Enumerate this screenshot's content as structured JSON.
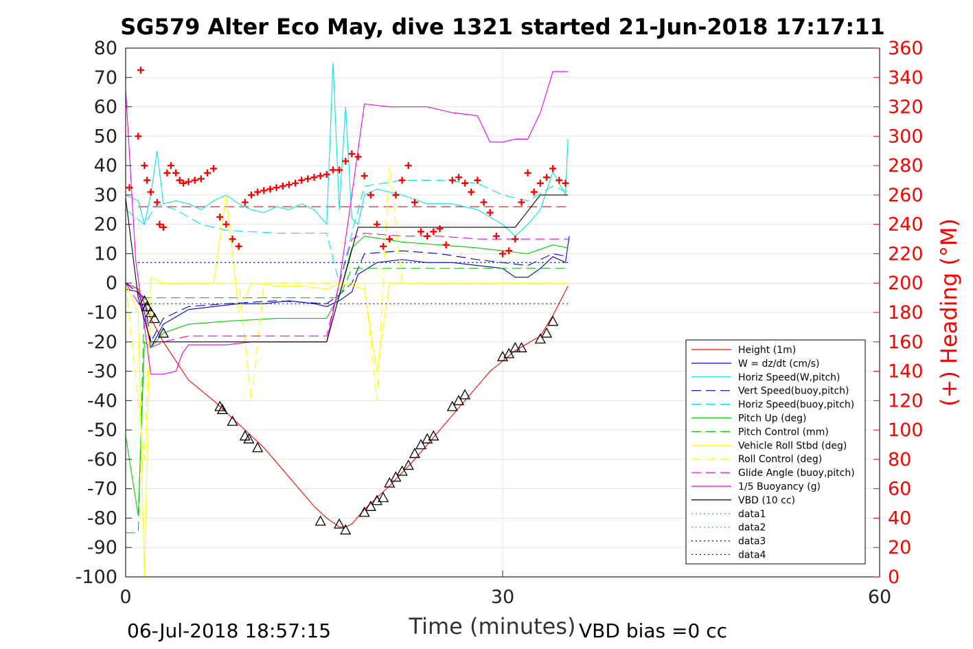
{
  "chart_data": {
    "type": "line",
    "title": "SG579 Alter Eco May, dive 1321 started 21-Jun-2018 17:17:11",
    "xlabel": "Time (minutes)",
    "ylabel_right": "(+) Heading (°M)",
    "xlim": [
      0,
      60
    ],
    "ylim_left": [
      -100,
      80
    ],
    "ylim_right": [
      0,
      360
    ],
    "x_ticks": [
      "0",
      "30",
      "60"
    ],
    "x_tick_values": [
      0,
      30,
      60
    ],
    "y_ticks_left": [
      "80",
      "70",
      "60",
      "50",
      "40",
      "30",
      "20",
      "10",
      "0",
      "-10",
      "-20",
      "-30",
      "-40",
      "-50",
      "-60",
      "-70",
      "-80",
      "-90",
      "-100"
    ],
    "y_tick_values_left": [
      80,
      70,
      60,
      50,
      40,
      30,
      20,
      10,
      0,
      -10,
      -20,
      -30,
      -40,
      -50,
      -60,
      -70,
      -80,
      -90,
      -100
    ],
    "y_ticks_right": [
      "360",
      "340",
      "320",
      "300",
      "280",
      "260",
      "240",
      "220",
      "200",
      "180",
      "160",
      "140",
      "120",
      "100",
      "80",
      "60",
      "40",
      "20",
      "0"
    ],
    "y_tick_values_right": [
      360,
      340,
      320,
      300,
      280,
      260,
      240,
      220,
      200,
      180,
      160,
      140,
      120,
      100,
      80,
      60,
      40,
      20,
      0
    ],
    "grid": true,
    "legend_position": "bottom-right",
    "footer_left": "06-Jul-2018 18:57:15",
    "footer_right": "VBD bias =0 cc",
    "series": [
      {
        "name": "Height (1m)",
        "color": "#ff0000",
        "style": "solid",
        "x": [
          0,
          1,
          2,
          3,
          5,
          7,
          9,
          11,
          13,
          15,
          16,
          17,
          17.5,
          18,
          19,
          21,
          23,
          25,
          27,
          29,
          31,
          33,
          34,
          35.2
        ],
        "y": [
          0,
          -2,
          -12,
          -20,
          -33,
          -40,
          -48,
          -56,
          -66,
          -76,
          -80,
          -83,
          -83,
          -82,
          -77,
          -69,
          -60,
          -50,
          -40,
          -30,
          -23,
          -18,
          -11,
          -1
        ]
      },
      {
        "name": "W = dz/dt (cm/s)",
        "color": "#0000cc",
        "style": "solid",
        "x": [
          0,
          1,
          1.5,
          2,
          3,
          5,
          7,
          9,
          11,
          13,
          15,
          16,
          17,
          18,
          18.5,
          20,
          22,
          24,
          26,
          28,
          30,
          31,
          32,
          33,
          34,
          35,
          35.3
        ],
        "y": [
          -2,
          -3,
          -10,
          -22,
          -14,
          -9,
          -8,
          -7,
          -7,
          -6,
          -7,
          -8,
          -6,
          -3,
          3,
          7,
          8,
          7,
          7,
          6,
          5,
          2,
          2,
          5,
          9,
          7,
          16
        ]
      },
      {
        "name": "Horiz Speed(W,pitch)",
        "color": "#00e5e5",
        "style": "solid",
        "x": [
          0,
          1,
          1.5,
          2,
          2.5,
          3,
          4,
          5,
          6,
          7,
          8,
          9,
          10,
          11,
          12,
          13,
          14,
          15,
          16,
          16.5,
          17,
          17.5,
          18,
          18.5,
          19,
          20,
          22,
          24,
          26,
          28,
          30,
          31,
          32,
          33,
          34,
          35,
          35.2
        ],
        "y": [
          30,
          28,
          20,
          30,
          45,
          27,
          28,
          27,
          25,
          28,
          30,
          27,
          25,
          24,
          26,
          25,
          27,
          25,
          20,
          75,
          25,
          60,
          22,
          20,
          30,
          32,
          30,
          27,
          27,
          25,
          20,
          16,
          20,
          25,
          38,
          30,
          49
        ]
      },
      {
        "name": "Vert Speed(buoy,pitch)",
        "color": "#0000cc",
        "style": "dash",
        "x": [
          0,
          1.5,
          2,
          3,
          5,
          8,
          12,
          16,
          17,
          18,
          19,
          22,
          25,
          28,
          30,
          32,
          34,
          35.2
        ],
        "y": [
          0,
          -5,
          -20,
          -12,
          -8,
          -7,
          -6,
          -7,
          -4,
          0,
          10,
          11,
          10,
          8,
          7,
          6,
          10,
          9
        ]
      },
      {
        "name": "Horiz Speed(buoy,pitch)",
        "color": "#00e5e5",
        "style": "dash",
        "x": [
          0,
          1.5,
          2.5,
          4,
          6,
          8,
          12,
          16,
          17,
          18,
          19,
          22,
          25,
          28,
          30,
          32,
          34,
          35.2
        ],
        "y": [
          25,
          20,
          27,
          25,
          20,
          18,
          17,
          17,
          0,
          17,
          33,
          35,
          35,
          34,
          30,
          28,
          33,
          31
        ]
      },
      {
        "name": "Pitch Up (deg)",
        "color": "#00cc00",
        "style": "solid",
        "x": [
          0,
          1,
          1.5,
          2,
          3,
          5,
          8,
          12,
          16,
          17,
          18,
          19,
          22,
          25,
          28,
          30,
          32,
          34,
          35.2
        ],
        "y": [
          -52,
          -79,
          -20,
          -22,
          -17,
          -14,
          -13,
          -12,
          -12,
          -4,
          12,
          16,
          14,
          13,
          12,
          11,
          10,
          13,
          12
        ]
      },
      {
        "name": "Pitch Control (mm)",
        "color": "#00cc00",
        "style": "dash",
        "x": [
          0,
          1,
          1.5,
          2,
          17,
          18,
          35.2
        ],
        "y": [
          -85,
          -85,
          -5,
          -5,
          -5,
          5,
          5
        ]
      },
      {
        "name": "Vehicle Roll Stbd (deg)",
        "color": "#ffff00",
        "style": "solid",
        "x": [
          0,
          1,
          1.5,
          2,
          3,
          5,
          7,
          8,
          9,
          10,
          12,
          14,
          16,
          17,
          19,
          20,
          21,
          22,
          24,
          26,
          28,
          30,
          32,
          34,
          35.2
        ],
        "y": [
          0,
          -10,
          -100,
          2,
          0,
          0,
          0,
          30,
          -10,
          0,
          -1,
          -1,
          -2,
          0,
          -2,
          -30,
          0,
          0,
          0,
          0,
          0,
          0,
          0,
          0,
          0
        ]
      },
      {
        "name": "Roll Control (deg)",
        "color": "#ffff00",
        "style": "dash",
        "x": [
          0,
          1.5,
          2,
          3,
          5,
          7,
          9,
          10,
          11,
          12,
          16,
          17,
          18,
          19,
          20,
          21,
          22,
          23,
          24,
          26,
          28,
          30,
          32,
          34,
          35.2
        ],
        "y": [
          0,
          -60,
          0,
          0,
          0,
          0,
          0,
          -40,
          0,
          0,
          0,
          0,
          0,
          0,
          -40,
          40,
          0,
          0,
          0,
          0,
          0,
          0,
          0,
          0,
          0
        ]
      },
      {
        "name": "Glide Angle (buoy,pitch)",
        "color": "#ee00ee",
        "style": "dash",
        "x": [
          0,
          1.5,
          2,
          3,
          5,
          8,
          12,
          16,
          17,
          18,
          19,
          22,
          25,
          28,
          30,
          32,
          34,
          35.2
        ],
        "y": [
          0,
          -10,
          -22,
          -20,
          -18,
          -18,
          -18,
          -18,
          0,
          15,
          17,
          16,
          16,
          15,
          15,
          15,
          15,
          15
        ]
      },
      {
        "name": "1/5 Buoyancy (g)",
        "color": "#ee00ee",
        "style": "solid",
        "x": [
          0,
          0.8,
          2,
          3,
          4,
          4.5,
          5,
          6,
          8,
          10,
          12,
          14,
          16,
          17,
          18,
          19,
          21,
          22,
          24,
          26,
          28,
          29,
          30,
          31,
          32,
          33,
          34,
          35.2
        ],
        "y": [
          66,
          8,
          -31,
          -31,
          -30,
          -24,
          -21,
          -21,
          -21,
          -20,
          -20,
          -20,
          -20,
          0,
          30,
          61,
          60,
          60,
          60,
          58,
          57,
          48,
          48,
          49,
          49,
          58,
          72,
          72
        ]
      },
      {
        "name": "VBD (10 cc)",
        "color": "#000000",
        "style": "solid",
        "x": [
          0,
          1,
          2,
          16,
          18.5,
          19,
          31,
          33,
          35.2
        ],
        "y": [
          29,
          -5,
          -20,
          -20,
          19,
          19,
          19,
          30,
          30
        ]
      },
      {
        "name": "data1",
        "color": "#00cc00",
        "style": "dot",
        "x": [
          1,
          35.2
        ],
        "y": [
          7,
          7
        ]
      },
      {
        "name": "data2",
        "color": "#00cc00",
        "style": "dot",
        "x": [
          1,
          35.2
        ],
        "y": [
          7,
          7
        ]
      },
      {
        "name": "data3",
        "color": "#0000cc",
        "style": "dot",
        "x": [
          1,
          35.2
        ],
        "y": [
          7,
          7
        ]
      },
      {
        "name": "data4",
        "color": "#0000cc",
        "style": "dot",
        "x": [
          1,
          35.2
        ],
        "y": [
          -7,
          -7
        ]
      }
    ],
    "reference_lines": [
      {
        "color": "#aa0000",
        "style": "dash",
        "x": [
          1,
          35.2
        ],
        "y": [
          26,
          26
        ]
      }
    ],
    "heading_markers": {
      "color": "#ff0000",
      "marker": "+",
      "x": [
        0.3,
        1,
        1.2,
        1.5,
        1.7,
        2,
        2.5,
        2.7,
        3,
        3.3,
        3.6,
        4,
        4.3,
        4.6,
        5,
        5.5,
        6,
        6.5,
        7,
        7.5,
        8,
        8.5,
        9,
        9.5,
        10,
        10.5,
        11,
        11.5,
        12,
        12.5,
        13,
        13.5,
        14,
        14.5,
        15,
        15.5,
        16,
        16.5,
        17,
        17.5,
        18,
        18.5,
        19,
        19.5,
        20,
        20.5,
        21,
        21.5,
        22,
        22.5,
        23,
        23.5,
        24,
        24.5,
        25,
        25.5,
        26,
        26.5,
        27,
        27.5,
        28,
        28.5,
        29,
        29.5,
        30,
        30.5,
        31,
        31.5,
        32,
        32.5,
        33,
        33.5,
        34,
        34.5,
        35
      ],
      "y": [
        265,
        300,
        345,
        280,
        270,
        262,
        255,
        240,
        238,
        275,
        280,
        275,
        270,
        268,
        269,
        270,
        271,
        275,
        278,
        245,
        240,
        230,
        225,
        255,
        260,
        262,
        263,
        264,
        265,
        266,
        267,
        268,
        270,
        271,
        272,
        273,
        274,
        277,
        277,
        283,
        288,
        286,
        273,
        260,
        240,
        225,
        230,
        260,
        270,
        280,
        255,
        235,
        232,
        235,
        237,
        226,
        270,
        272,
        268,
        262,
        270,
        255,
        248,
        232,
        220,
        222,
        230,
        255,
        275,
        262,
        268,
        272,
        278,
        270,
        268
      ]
    },
    "glider_markers": {
      "color": "#000000",
      "marker": "triangle",
      "x": [
        1.5,
        1.7,
        2,
        2.3,
        3,
        7.5,
        7.7,
        8.5,
        9.5,
        9.8,
        10.5,
        15.5,
        17,
        17.5,
        19,
        19.5,
        20,
        20.5,
        21,
        21.5,
        22,
        22.5,
        23,
        23.5,
        24,
        24.5,
        26,
        26.5,
        27,
        30,
        30.5,
        31,
        31.5,
        33,
        33.5,
        34
      ],
      "y": [
        -6,
        -8,
        -10,
        -12,
        -17,
        -42,
        -43,
        -47,
        -52,
        -53,
        -56,
        -81,
        -82,
        -84,
        -78,
        -76,
        -74,
        -73,
        -68,
        -66,
        -64,
        -62,
        -58,
        -55,
        -53,
        -52,
        -42,
        -40,
        -38,
        -25,
        -24,
        -22,
        -22,
        -19,
        -17,
        -13
      ]
    }
  }
}
